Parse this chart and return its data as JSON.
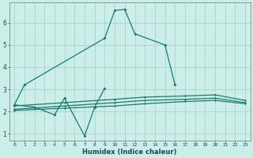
{
  "xlabel": "Humidex (Indice chaleur)",
  "background_color": "#cceee8",
  "grid_color": "#aad4ce",
  "line_color": "#1a7a6e",
  "xlim": [
    -0.5,
    23.5
  ],
  "ylim": [
    0.7,
    6.9
  ],
  "yticks": [
    1,
    2,
    3,
    4,
    5,
    6
  ],
  "xticks": [
    0,
    1,
    2,
    3,
    4,
    5,
    6,
    7,
    8,
    9,
    10,
    11,
    12,
    13,
    14,
    15,
    16,
    17,
    18,
    19,
    20,
    21,
    22,
    23
  ],
  "series_full": {
    "main_peak": {
      "x": [
        0,
        1,
        9,
        10,
        11,
        12,
        15,
        16
      ],
      "y": [
        2.3,
        3.2,
        5.3,
        6.55,
        6.6,
        5.5,
        5.0,
        3.2
      ]
    },
    "volatile": {
      "x": [
        0,
        2,
        4,
        5,
        7,
        8,
        9
      ],
      "y": [
        2.3,
        2.2,
        1.85,
        2.6,
        0.9,
        2.2,
        3.05
      ]
    },
    "flat1": {
      "x": [
        0,
        5,
        10,
        13,
        17,
        20,
        23
      ],
      "y": [
        2.25,
        2.4,
        2.55,
        2.65,
        2.7,
        2.75,
        2.5
      ]
    },
    "flat2": {
      "x": [
        0,
        5,
        10,
        13,
        17,
        20,
        23
      ],
      "y": [
        2.1,
        2.25,
        2.4,
        2.5,
        2.55,
        2.6,
        2.4
      ]
    },
    "flat3": {
      "x": [
        0,
        5,
        10,
        13,
        17,
        20,
        23
      ],
      "y": [
        2.05,
        2.15,
        2.25,
        2.35,
        2.45,
        2.5,
        2.35
      ]
    }
  }
}
